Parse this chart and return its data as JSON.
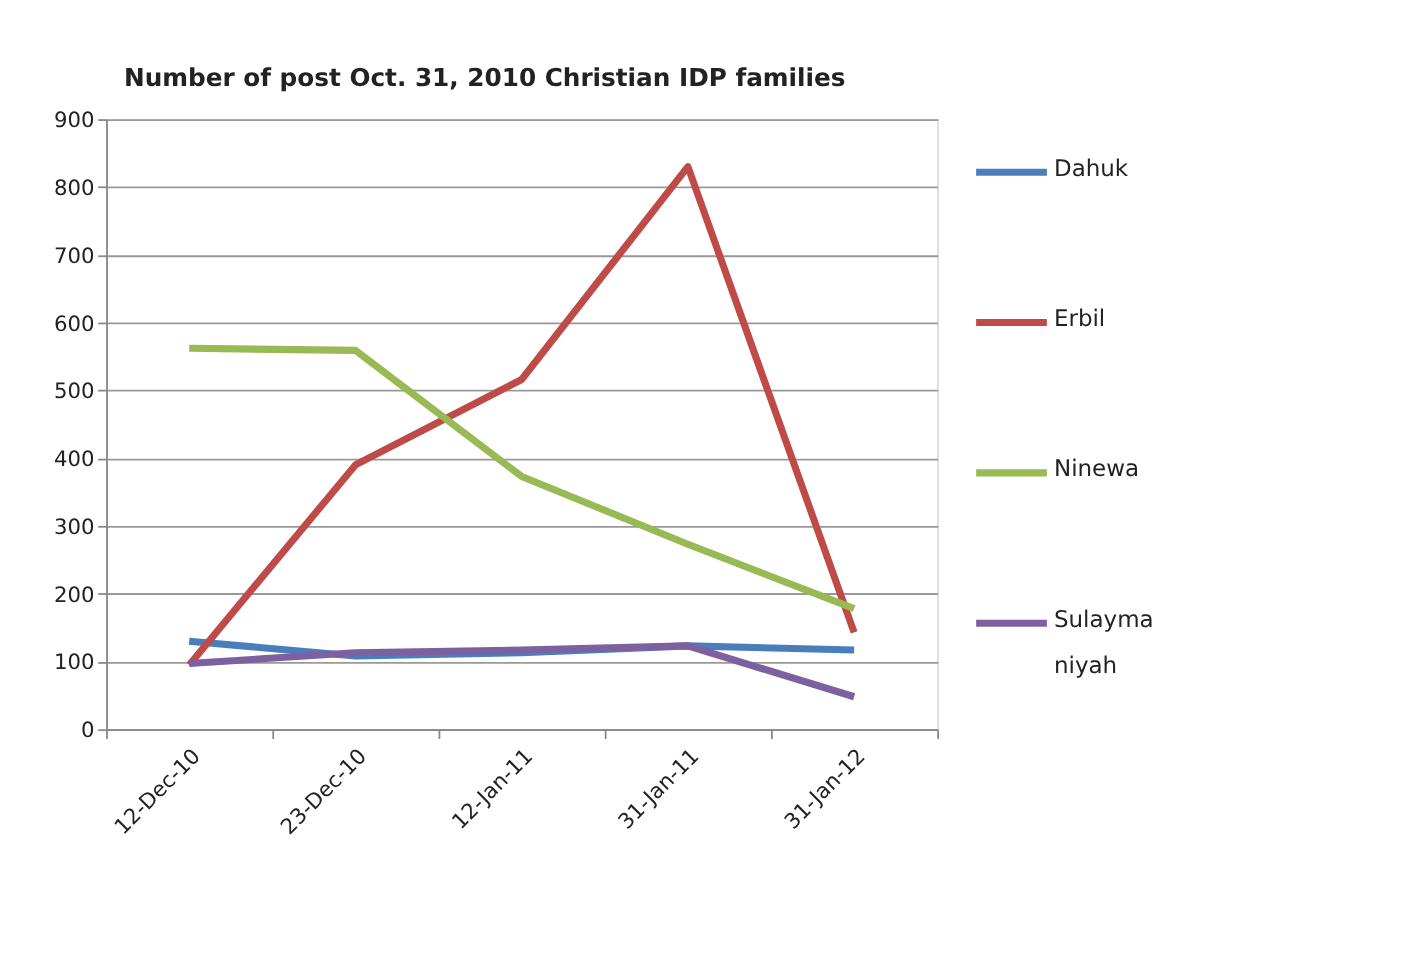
{
  "chart_data": {
    "type": "line",
    "title": "Number of post Oct. 31, 2010 Christian IDP families",
    "categories": [
      "12-Dec-10",
      "23-Dec-10",
      "12-Jan-11",
      "31-Jan-11",
      "31-Jan-12"
    ],
    "series": [
      {
        "name": "Dahuk",
        "color": "#4a7ebb",
        "values": [
          130,
          108,
          113,
          123,
          117
        ]
      },
      {
        "name": "Erbil",
        "color": "#be4b48",
        "values": [
          95,
          390,
          516,
          830,
          143
        ]
      },
      {
        "name": "Ninewa",
        "color": "#98b954",
        "values": [
          562,
          559,
          373,
          273,
          178
        ]
      },
      {
        "name": "Sulaymaniyah",
        "color": "#7d60a0",
        "values": [
          97,
          113,
          117,
          123,
          48
        ]
      }
    ],
    "ylim": [
      0,
      900
    ],
    "yticks": [
      0,
      100,
      200,
      300,
      400,
      500,
      600,
      700,
      800,
      900
    ],
    "grid": "y",
    "legend": "right",
    "marker": "none",
    "line_style": "solid"
  }
}
